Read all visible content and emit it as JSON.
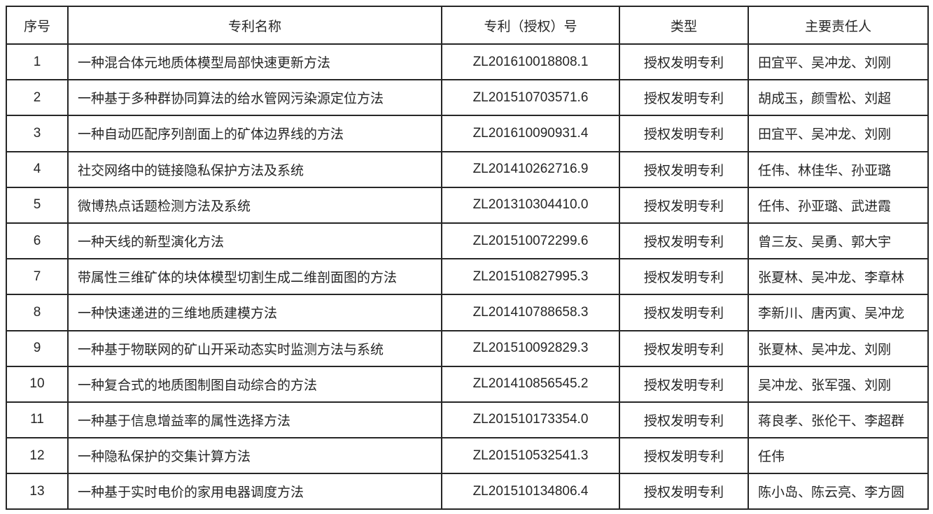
{
  "colors": {
    "border": "#262626",
    "text": "#262626",
    "background": "#ffffff"
  },
  "table": {
    "headers": [
      "序号",
      "专利名称",
      "专利（授权）号",
      "类型",
      "主要责任人"
    ],
    "rows": [
      [
        "1",
        "一种混合体元地质体模型局部快速更新方法",
        "ZL201610018808.1",
        "授权发明专利",
        "田宜平、吴冲龙、刘刚"
      ],
      [
        "2",
        "一种基于多种群协同算法的给水管网污染源定位方法",
        "ZL201510703571.6",
        "授权发明专利",
        "胡成玉，颜雪松、刘超"
      ],
      [
        "3",
        "一种自动匹配序列剖面上的矿体边界线的方法",
        "ZL201610090931.4",
        "授权发明专利",
        "田宜平、吴冲龙、刘刚"
      ],
      [
        "4",
        "社交网络中的链接隐私保护方法及系统",
        "ZL201410262716.9",
        "授权发明专利",
        "任伟、林佳华、孙亚璐"
      ],
      [
        "5",
        "微博热点话题检测方法及系统",
        "ZL201310304410.0",
        "授权发明专利",
        "任伟、孙亚璐、武进霞"
      ],
      [
        "6",
        "一种天线的新型演化方法",
        "ZL201510072299.6",
        "授权发明专利",
        "曾三友、吴勇、郭大宇"
      ],
      [
        "7",
        "带属性三维矿体的块体模型切割生成二维剖面图的方法",
        "ZL201510827995.3",
        "授权发明专利",
        "张夏林、吴冲龙、李章林"
      ],
      [
        "8",
        "一种快速递进的三维地质建模方法",
        "ZL201410788658.3",
        "授权发明专利",
        "李新川、唐丙寅、吴冲龙"
      ],
      [
        "9",
        "一种基于物联网的矿山开采动态实时监测方法与系统",
        "ZL201510092829.3",
        "授权发明专利",
        "张夏林、吴冲龙、刘刚"
      ],
      [
        "10",
        "一种复合式的地质图制图自动综合的方法",
        "ZL201410856545.2",
        "授权发明专利",
        "吴冲龙、张军强、刘刚"
      ],
      [
        "11",
        "一种基于信息增益率的属性选择方法",
        "ZL201510173354.0",
        "授权发明专利",
        "蒋良孝、张伦干、李超群"
      ],
      [
        "12",
        "一种隐私保护的交集计算方法",
        "ZL201510532541.3",
        "授权发明专利",
        "任伟"
      ],
      [
        "13",
        "一种基于实时电价的家用电器调度方法",
        "ZL201510134806.4",
        "授权发明专利",
        "陈小岛、陈云亮、李方圆"
      ]
    ]
  }
}
